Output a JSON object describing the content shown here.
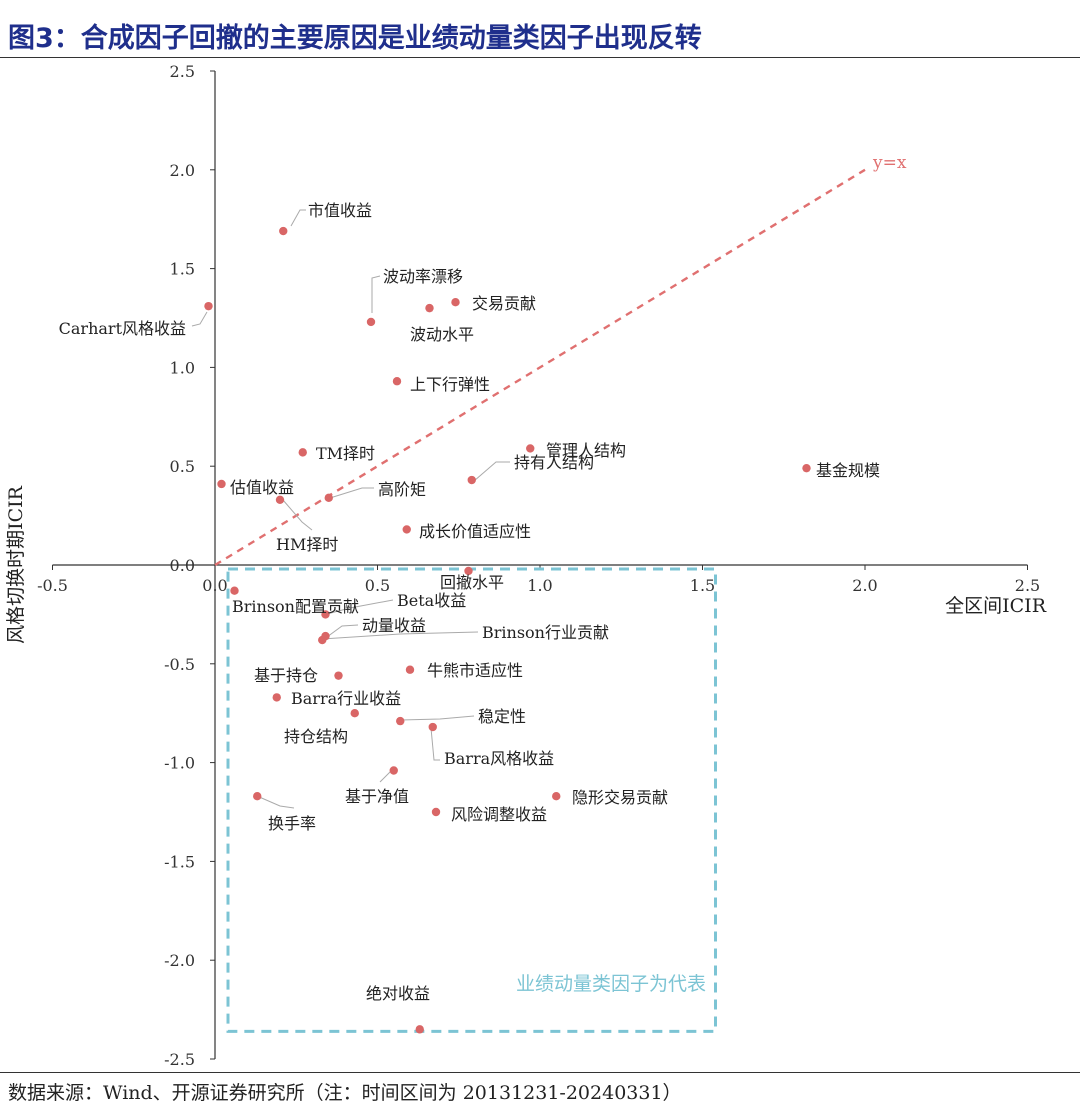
{
  "title": "图3：合成因子回撤的主要原因是业绩动量类因子出现反转",
  "source": "数据来源：Wind、开源证券研究所（注：时间区间为 20131231-20240331）",
  "chart_data": {
    "type": "scatter",
    "xlabel": "全区间ICIR",
    "ylabel": "风格切换时期ICIR",
    "xlim": [
      -0.5,
      2.5
    ],
    "ylim": [
      -2.5,
      2.5
    ],
    "x_ticks": [
      "-0.5",
      "0.0",
      "0.5",
      "1.0",
      "1.5",
      "2.0",
      "2.5"
    ],
    "y_ticks": [
      "2.5",
      "2.0",
      "1.5",
      "1.0",
      "0.5",
      "0.0",
      "-0.5",
      "-1.0",
      "-1.5",
      "-2.0",
      "-2.5"
    ],
    "reference_line": {
      "label": "y=x",
      "from": [
        0,
        0
      ],
      "to": [
        2.0,
        2.0
      ],
      "color": "#e07070"
    },
    "highlight_box": {
      "label": "业绩动量类因子为代表",
      "x_range": [
        0.04,
        1.54
      ],
      "y_range": [
        -2.36,
        0.0
      ],
      "color": "#7cc4d4"
    },
    "marker_color": "#d96666",
    "points": [
      {
        "label": "市值收益",
        "x": 0.21,
        "y": 1.69
      },
      {
        "label": "波动率漂移",
        "x": 0.48,
        "y": 1.23
      },
      {
        "label": "交易贡献",
        "x": 0.74,
        "y": 1.33
      },
      {
        "label": "波动水平",
        "x": 0.66,
        "y": 1.3
      },
      {
        "label": "Carhart风格收益",
        "x": -0.02,
        "y": 1.31
      },
      {
        "label": "上下行弹性",
        "x": 0.56,
        "y": 0.93
      },
      {
        "label": "TM择时",
        "x": 0.27,
        "y": 0.57
      },
      {
        "label": "管理人结构",
        "x": 0.97,
        "y": 0.59
      },
      {
        "label": "持有人结构",
        "x": 0.79,
        "y": 0.43
      },
      {
        "label": "基金规模",
        "x": 1.82,
        "y": 0.49
      },
      {
        "label": "估值收益",
        "x": 0.02,
        "y": 0.41
      },
      {
        "label": "高阶矩",
        "x": 0.35,
        "y": 0.34
      },
      {
        "label": "HM择时",
        "x": 0.2,
        "y": 0.33
      },
      {
        "label": "成长价值适应性",
        "x": 0.59,
        "y": 0.18
      },
      {
        "label": "回撤水平",
        "x": 0.78,
        "y": -0.03
      },
      {
        "label": "Brinson配置贡献",
        "x": 0.06,
        "y": -0.13
      },
      {
        "label": "Beta收益",
        "x": 0.34,
        "y": -0.25
      },
      {
        "label": "动量收益",
        "x": 0.34,
        "y": -0.36
      },
      {
        "label": "Brinson行业贡献",
        "x": 0.33,
        "y": -0.38
      },
      {
        "label": "基于持仓",
        "x": 0.38,
        "y": -0.56
      },
      {
        "label": "牛熊市适应性",
        "x": 0.6,
        "y": -0.53
      },
      {
        "label": "Barra行业收益",
        "x": 0.19,
        "y": -0.67
      },
      {
        "label": "持仓结构",
        "x": 0.43,
        "y": -0.75
      },
      {
        "label": "稳定性",
        "x": 0.57,
        "y": -0.79
      },
      {
        "label": "Barra风格收益",
        "x": 0.67,
        "y": -0.82
      },
      {
        "label": "基于净值",
        "x": 0.55,
        "y": -1.04
      },
      {
        "label": "换手率",
        "x": 0.13,
        "y": -1.17
      },
      {
        "label": "隐形交易贡献",
        "x": 1.05,
        "y": -1.17
      },
      {
        "label": "风险调整收益",
        "x": 0.68,
        "y": -1.25
      },
      {
        "label": "绝对收益",
        "x": 0.63,
        "y": -2.35
      }
    ]
  }
}
